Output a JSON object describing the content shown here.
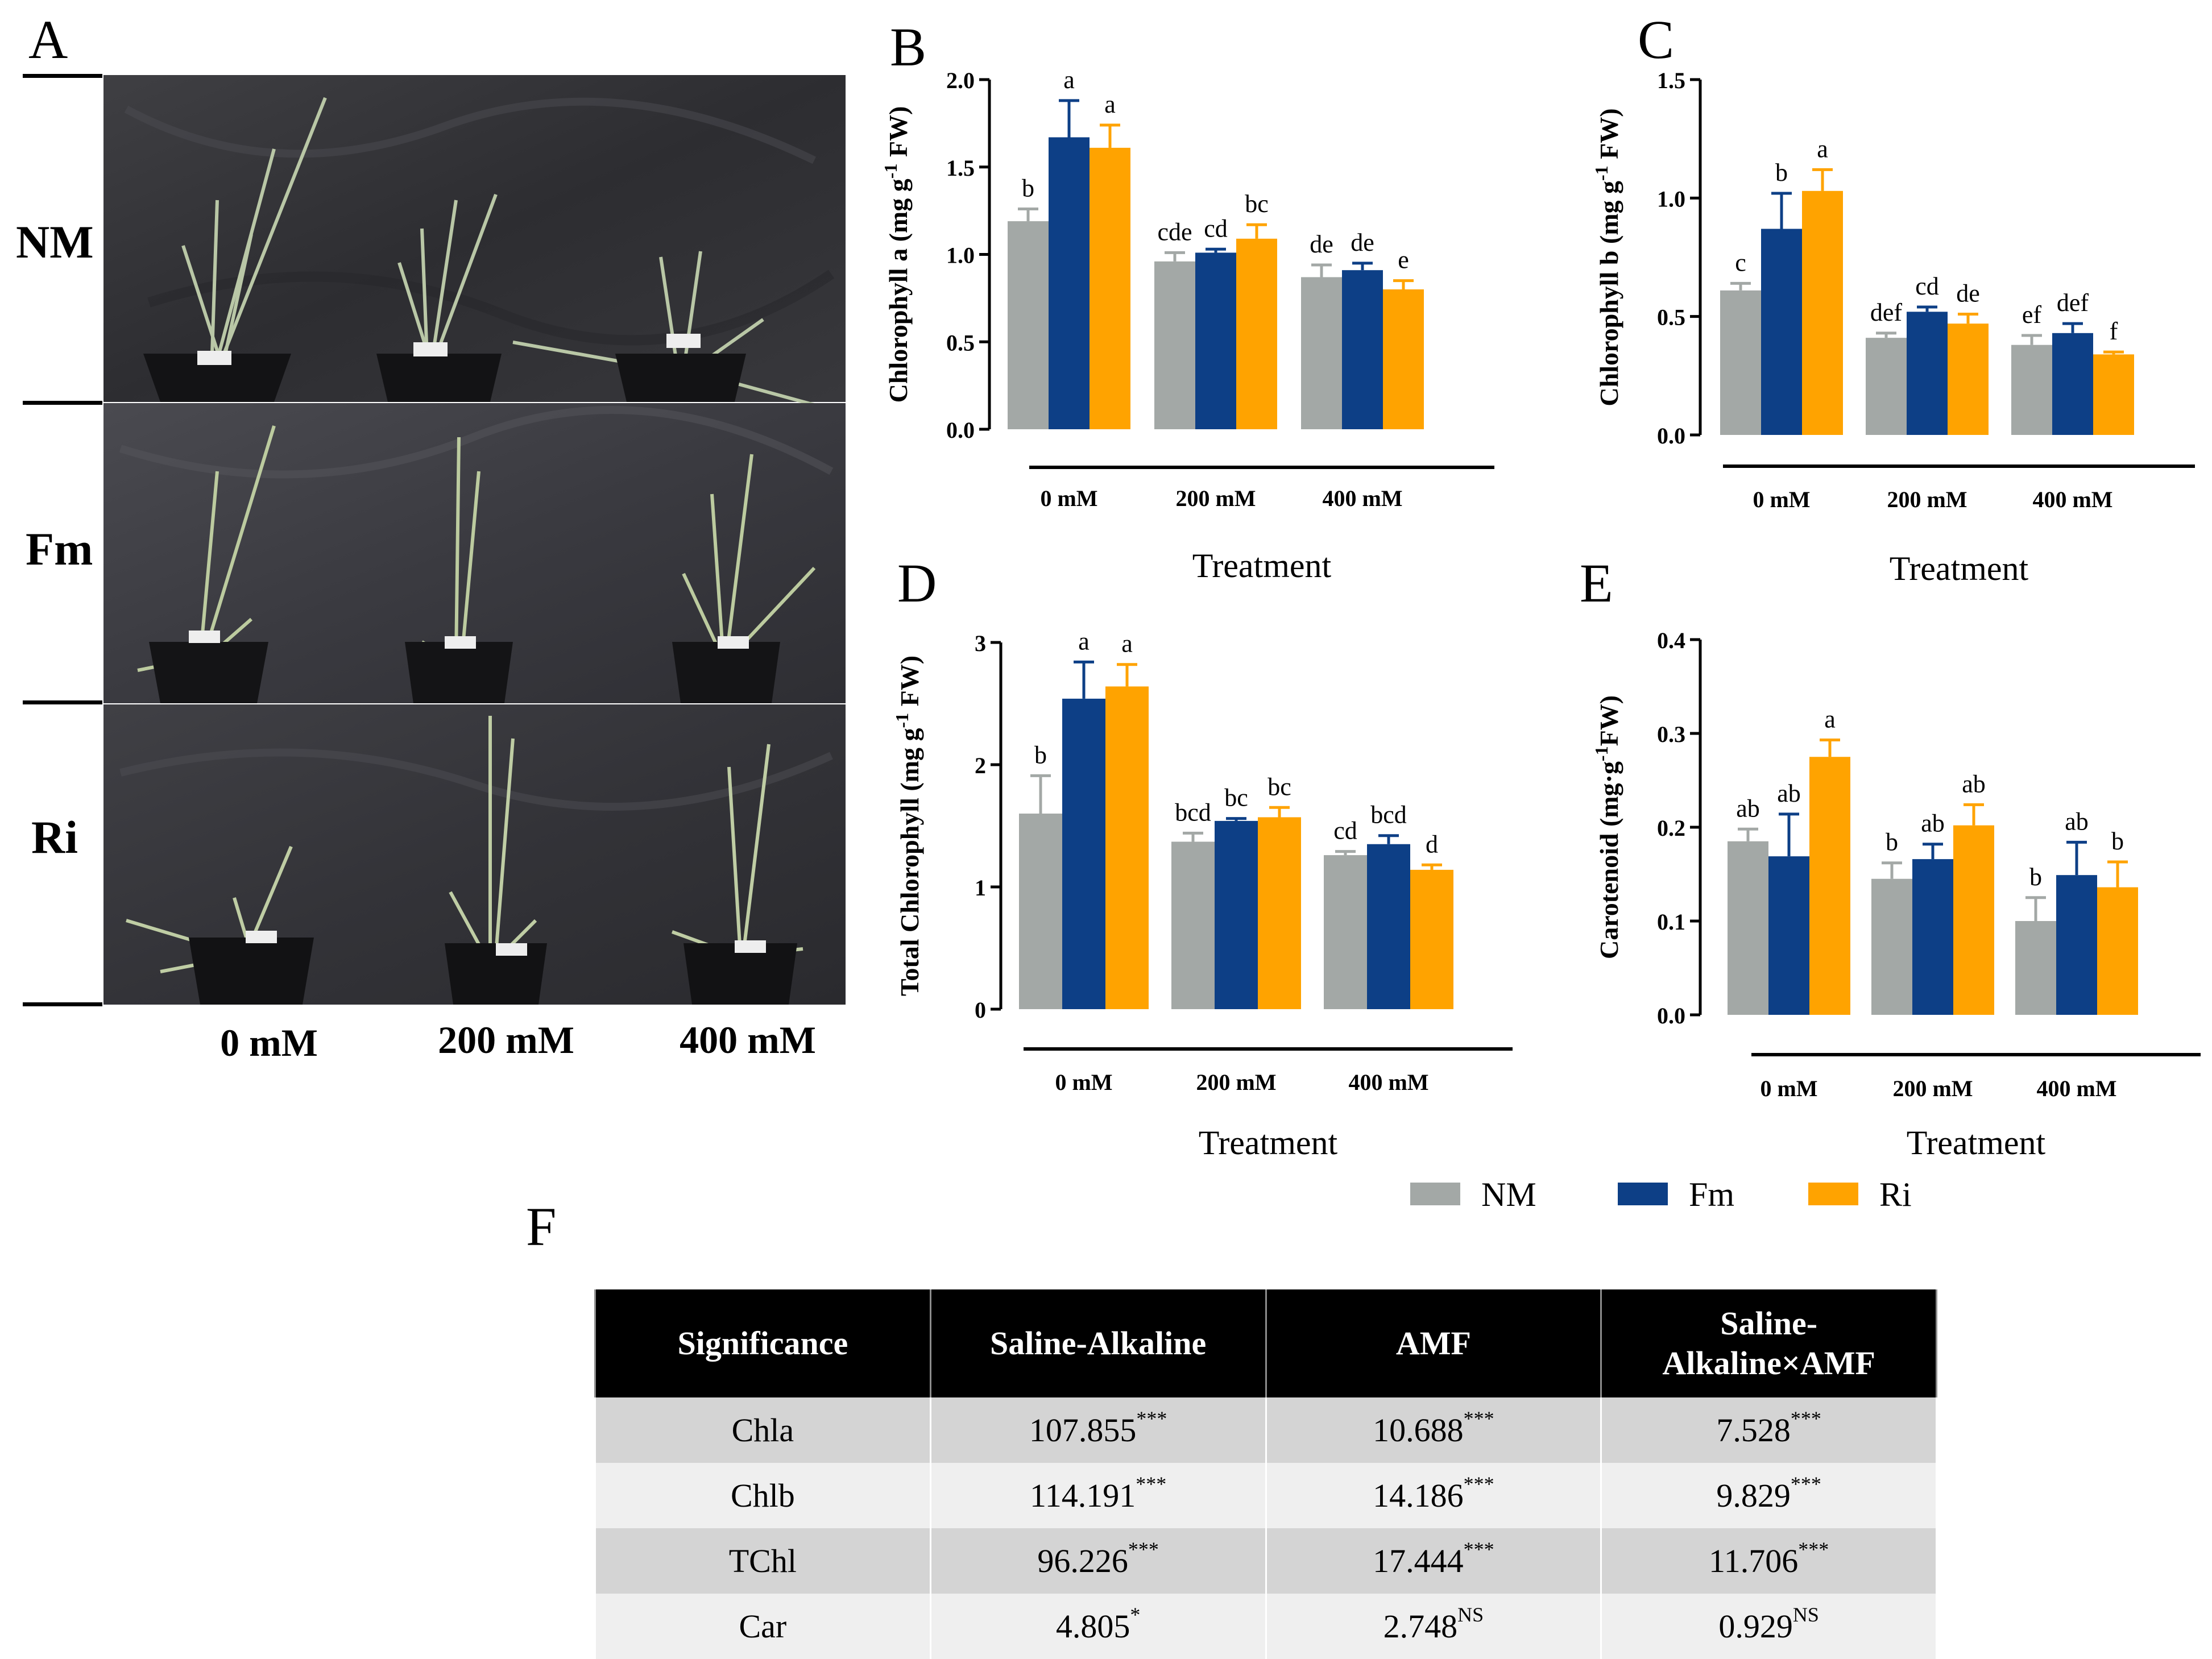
{
  "panel_letters": {
    "A": "A",
    "B": "B",
    "C": "C",
    "D": "D",
    "E": "E",
    "F": "F"
  },
  "photo_panel": {
    "row_labels": [
      "NM",
      "Fm",
      "Ri"
    ],
    "column_labels": [
      "0 mM",
      "200 mM",
      "400 mM"
    ]
  },
  "colors": {
    "NM": "#a3a8a6",
    "Fm": "#0d3f86",
    "Ri": "#ffa300"
  },
  "legend": [
    {
      "name": "NM",
      "color": "#a3a8a6"
    },
    {
      "name": "Fm",
      "color": "#0d3f86"
    },
    {
      "name": "Ri",
      "color": "#ffa300"
    }
  ],
  "chart_data": [
    {
      "id": "B",
      "type": "bar",
      "ylabel_main": "Chlorophyll a (mg g",
      "ylabel_sup": "-1",
      "ylabel_end": " FW)",
      "xlabel": "Treatment",
      "categories": [
        "0 mM",
        "200 mM",
        "400 mM"
      ],
      "ylim": [
        0,
        2.0
      ],
      "yticks": [
        "0.0",
        "0.5",
        "1.0",
        "1.5",
        "2.0"
      ],
      "series": [
        {
          "name": "NM",
          "values": [
            1.19,
            0.96,
            0.87
          ],
          "errors": [
            0.07,
            0.05,
            0.07
          ],
          "letters": [
            "b",
            "cde",
            "de"
          ]
        },
        {
          "name": "Fm",
          "values": [
            1.67,
            1.01,
            0.91
          ],
          "errors": [
            0.21,
            0.02,
            0.04
          ],
          "letters": [
            "a",
            "cd",
            "de"
          ]
        },
        {
          "name": "Ri",
          "values": [
            1.61,
            1.09,
            0.8
          ],
          "errors": [
            0.13,
            0.08,
            0.05
          ],
          "letters": [
            "a",
            "bc",
            "e"
          ]
        }
      ]
    },
    {
      "id": "C",
      "type": "bar",
      "ylabel_main": "Chlorophyll b (mg g",
      "ylabel_sup": "-1",
      "ylabel_end": " FW)",
      "xlabel": "Treatment",
      "categories": [
        "0 mM",
        "200 mM",
        "400 mM"
      ],
      "ylim": [
        0,
        1.5
      ],
      "yticks": [
        "0.0",
        "0.5",
        "1.0",
        "1.5"
      ],
      "series": [
        {
          "name": "NM",
          "values": [
            0.61,
            0.41,
            0.38
          ],
          "errors": [
            0.03,
            0.02,
            0.04
          ],
          "letters": [
            "c",
            "def",
            "ef"
          ]
        },
        {
          "name": "Fm",
          "values": [
            0.87,
            0.52,
            0.43
          ],
          "errors": [
            0.15,
            0.02,
            0.04
          ],
          "letters": [
            "b",
            "cd",
            "def"
          ]
        },
        {
          "name": "Ri",
          "values": [
            1.03,
            0.47,
            0.34
          ],
          "errors": [
            0.09,
            0.04,
            0.01
          ],
          "letters": [
            "a",
            "de",
            "f"
          ]
        }
      ]
    },
    {
      "id": "D",
      "type": "bar",
      "ylabel_main": "Total Chlorophyll (mg g",
      "ylabel_sup": "-1",
      "ylabel_end": " FW)",
      "xlabel": "Treatment",
      "categories": [
        "0 mM",
        "200 mM",
        "400 mM"
      ],
      "ylim": [
        0,
        3
      ],
      "yticks": [
        "0",
        "1",
        "2",
        "3"
      ],
      "series": [
        {
          "name": "NM",
          "values": [
            1.6,
            1.37,
            1.26
          ],
          "errors": [
            0.31,
            0.07,
            0.03
          ],
          "letters": [
            "b",
            "bcd",
            "cd"
          ]
        },
        {
          "name": "Fm",
          "values": [
            2.54,
            1.54,
            1.35
          ],
          "errors": [
            0.3,
            0.02,
            0.07
          ],
          "letters": [
            "a",
            "bc",
            "bcd"
          ]
        },
        {
          "name": "Ri",
          "values": [
            2.64,
            1.57,
            1.14
          ],
          "errors": [
            0.18,
            0.08,
            0.04
          ],
          "letters": [
            "a",
            "bc",
            "d"
          ]
        }
      ]
    },
    {
      "id": "E",
      "type": "bar",
      "ylabel_main": "Carotenoid (mg·g",
      "ylabel_sup": "-1",
      "ylabel_end": "FW)",
      "xlabel": "Treatment",
      "categories": [
        "0 mM",
        "200 mM",
        "400 mM"
      ],
      "ylim": [
        0,
        0.4
      ],
      "yticks": [
        "0.0",
        "0.1",
        "0.2",
        "0.3",
        "0.4"
      ],
      "series": [
        {
          "name": "NM",
          "values": [
            0.185,
            0.145,
            0.1
          ],
          "errors": [
            0.013,
            0.017,
            0.025
          ],
          "letters": [
            "ab",
            "b",
            "b"
          ]
        },
        {
          "name": "Fm",
          "values": [
            0.169,
            0.166,
            0.149
          ],
          "errors": [
            0.045,
            0.016,
            0.035
          ],
          "letters": [
            "ab",
            "ab",
            "ab"
          ]
        },
        {
          "name": "Ri",
          "values": [
            0.275,
            0.202,
            0.136
          ],
          "errors": [
            0.018,
            0.022,
            0.027
          ],
          "letters": [
            "a",
            "ab",
            "b"
          ]
        }
      ]
    }
  ],
  "table": {
    "headers": [
      "Significance",
      "Saline-Alkaline",
      "AMF",
      "Saline-\nAlkaline×AMF"
    ],
    "rows": [
      {
        "label": "Chla",
        "cells": [
          {
            "value": "107.855",
            "sig": "***"
          },
          {
            "value": "10.688",
            "sig": "***"
          },
          {
            "value": "7.528",
            "sig": "***"
          }
        ]
      },
      {
        "label": "Chlb",
        "cells": [
          {
            "value": "114.191",
            "sig": "***"
          },
          {
            "value": "14.186",
            "sig": "***"
          },
          {
            "value": "9.829",
            "sig": "***"
          }
        ]
      },
      {
        "label": "TChl",
        "cells": [
          {
            "value": "96.226",
            "sig": "***"
          },
          {
            "value": "17.444",
            "sig": "***"
          },
          {
            "value": "11.706",
            "sig": "***"
          }
        ]
      },
      {
        "label": "Car",
        "cells": [
          {
            "value": "4.805",
            "sig": "*"
          },
          {
            "value": "2.748",
            "sig": "NS"
          },
          {
            "value": "0.929",
            "sig": "NS"
          }
        ]
      }
    ]
  }
}
